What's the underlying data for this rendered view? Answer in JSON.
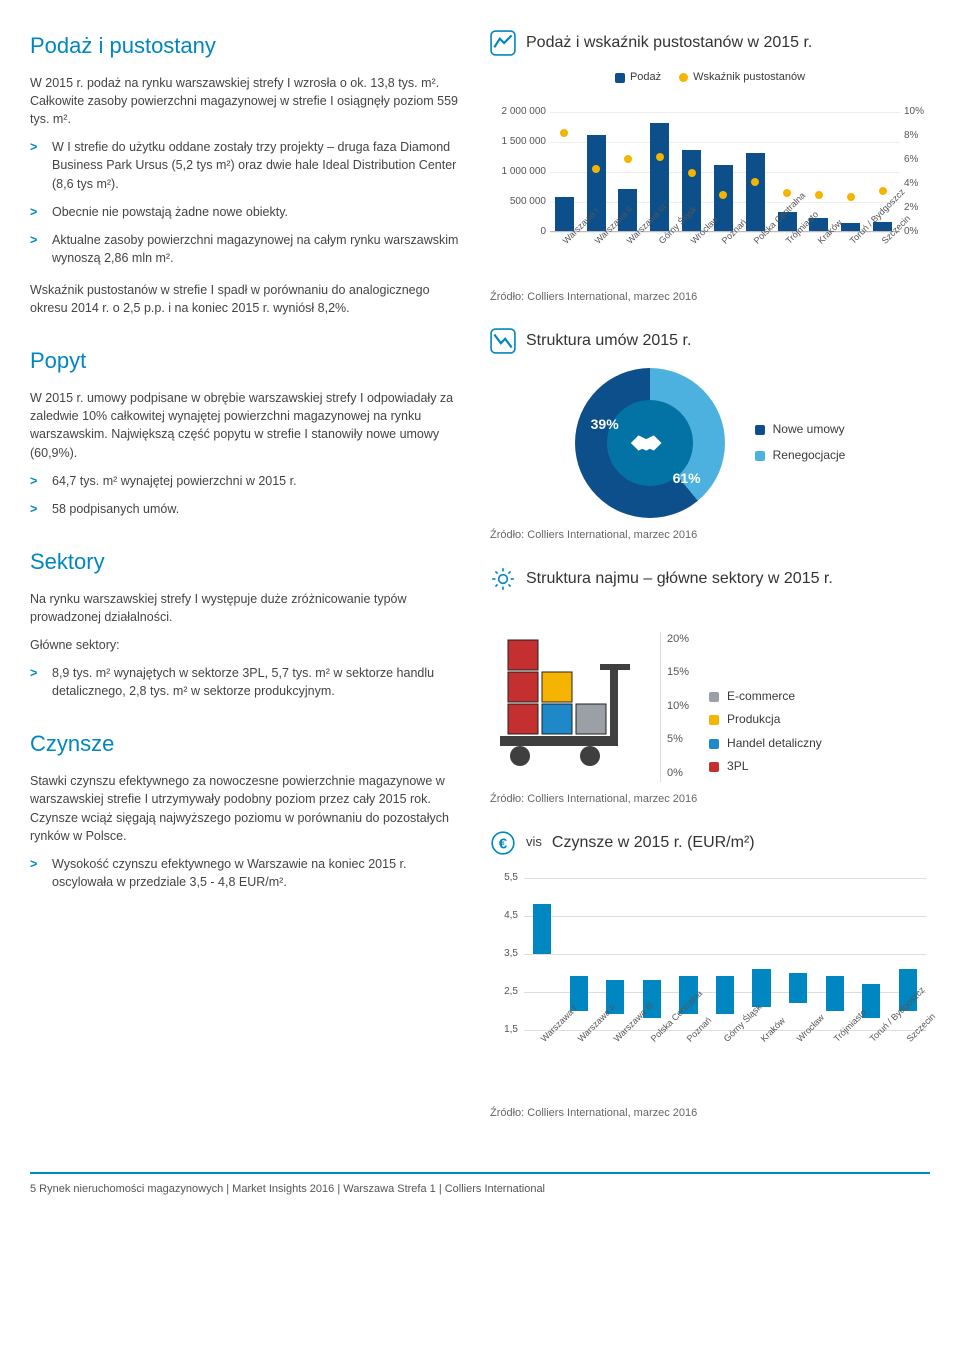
{
  "left": {
    "podaz": {
      "title": "Podaż i pustostany",
      "p1": "W 2015 r. podaż na rynku warszawskiej strefy I wzrosła o ok. 13,8 tys. m². Całkowite zasoby powierzchni magazynowej w strefie I osiągnęły poziom 559 tys. m².",
      "b1": "W I strefie do użytku oddane zostały trzy projekty – druga faza Diamond Business Park Ursus (5,2 tys m²) oraz dwie hale Ideal Distribution Center (8,6 tys m²).",
      "b2": "Obecnie nie powstają żadne nowe obiekty.",
      "b3": "Aktualne zasoby powierzchni magazynowej na całym rynku warszawskim wynoszą 2,86 mln m².",
      "p2": "Wskaźnik pustostanów w strefie I spadł w porównaniu do analogicznego okresu 2014 r. o 2,5 p.p. i na koniec 2015 r. wyniósł 8,2%."
    },
    "popyt": {
      "title": "Popyt",
      "p1": "W 2015 r. umowy podpisane w obrębie warszawskiej strefy I odpowiadały za zaledwie 10% całkowitej wynajętej powierzchni magazynowej na rynku warszawskim. Największą część popytu w strefie I stanowiły nowe umowy (60,9%).",
      "b1": "64,7 tys. m² wynajętej powierzchni w 2015 r.",
      "b2": "58 podpisanych umów."
    },
    "sektory": {
      "title": "Sektory",
      "p1": "Na rynku warszawskiej strefy I występuje duże zróżnicowanie typów prowadzonej działalności.",
      "p2": "Główne sektory:",
      "b1": "8,9 tys. m² wynajętych w sektorze 3PL, 5,7 tys. m² w sektorze handlu detalicznego, 2,8 tys. m² w sektorze produkcyjnym."
    },
    "czynsze": {
      "title": "Czynsze",
      "p1": "Stawki czynszu efektywnego za nowoczesne powierzchnie magazynowe w warszawskiej strefie I utrzymywały podobny poziom przez cały 2015 rok. Czynsze wciąż sięgają najwyższego poziomu w porównaniu do pozostałych rynków w Polsce.",
      "b1": "Wysokość czynszu efektywnego w Warszawie na koniec 2015 r. oscylowała w przedziale 3,5 - 4,8 EUR/m²."
    }
  },
  "right": {
    "source": "Źródło: Colliers International, marzec 2016",
    "chart1": {
      "title": "Podaż i wskaźnik pustostanów w 2015 r.",
      "legend_supply": "Podaż",
      "legend_vacancy": "Wskaźnik pustostanów",
      "y_left_ticks": [
        "2 000 000",
        "1 500 000",
        "1 000 000",
        "500 000",
        "0"
      ],
      "y_left_max": 2000000,
      "y_right_ticks": [
        "10%",
        "8%",
        "6%",
        "4%",
        "2%",
        "0%"
      ],
      "y_right_max": 10,
      "categories": [
        "Warszawa I",
        "Warszawa II",
        "Warszawa III",
        "Górny Śląsk",
        "Wrocław",
        "Poznań",
        "Polska Centralna",
        "Trójmiasto",
        "Kraków",
        "Toruń / Bydgoszcz",
        "Szczecin"
      ],
      "supply": [
        559000,
        1600000,
        700000,
        1800000,
        1350000,
        1100000,
        1300000,
        320000,
        220000,
        140000,
        150000
      ],
      "vacancy": [
        8.2,
        5.2,
        6.0,
        6.2,
        4.8,
        3.0,
        4.1,
        3.2,
        3.0,
        2.8,
        3.3
      ],
      "bar_color": "#0c4f8a",
      "dot_color": "#f5b400",
      "grid_color": "#eeeeee"
    },
    "chart2": {
      "title": "Struktura umów 2015 r.",
      "slices": [
        {
          "label": "Nowe umowy",
          "value": 61,
          "color": "#0c4f8a"
        },
        {
          "label": "Renegocjacje",
          "value": 39,
          "color": "#4db1df"
        }
      ],
      "center_color": "#0373a5",
      "pct_a": "39%",
      "pct_b": "61%"
    },
    "chart3": {
      "title": "Struktura najmu – główne sektory w 2015 r.",
      "scale": [
        "20%",
        "15%",
        "10%",
        "5%",
        "0%"
      ],
      "legend": [
        {
          "label": "E-commerce",
          "color": "#9aa0a6"
        },
        {
          "label": "Produkcja",
          "color": "#f5b400"
        },
        {
          "label": "Handel detaliczny",
          "color": "#1e88c9"
        },
        {
          "label": "3PL",
          "color": "#c42f2f"
        }
      ],
      "box_colors": {
        "red": "#c42f2f",
        "blue": "#1e88c9",
        "yellow": "#f5b400",
        "grey": "#9aa0a6",
        "frame": "#3f3f3f",
        "wheel": "#3f3f3f"
      }
    },
    "chart4": {
      "title": "Czynsze w 2015 r. (EUR/m²)",
      "y_ticks": [
        "5,5",
        "4,5",
        "3,5",
        "2,5",
        "1,5"
      ],
      "y_min": 1.5,
      "y_max": 5.5,
      "categories": [
        "Warszawa I",
        "Warszawa II",
        "Warszawa III",
        "Polska Centralna",
        "Poznań",
        "Górny Śląsk",
        "Kraków",
        "Wrocław",
        "Trójmiasto",
        "Toruń / Bydgoszcz",
        "Szczecin"
      ],
      "ranges": [
        [
          3.5,
          4.8
        ],
        [
          2.0,
          2.9
        ],
        [
          1.9,
          2.8
        ],
        [
          1.8,
          2.8
        ],
        [
          1.9,
          2.9
        ],
        [
          1.9,
          2.9
        ],
        [
          2.1,
          3.1
        ],
        [
          2.2,
          3.0
        ],
        [
          2.0,
          2.9
        ],
        [
          1.8,
          2.7
        ],
        [
          2.0,
          3.1
        ]
      ],
      "bar_color": "#0087c1",
      "grid_color": "#dddddd"
    }
  },
  "footer": "5 Rynek nieruchomości magazynowych | Market Insights 2016 | Warszawa Strefa 1 | Colliers International"
}
